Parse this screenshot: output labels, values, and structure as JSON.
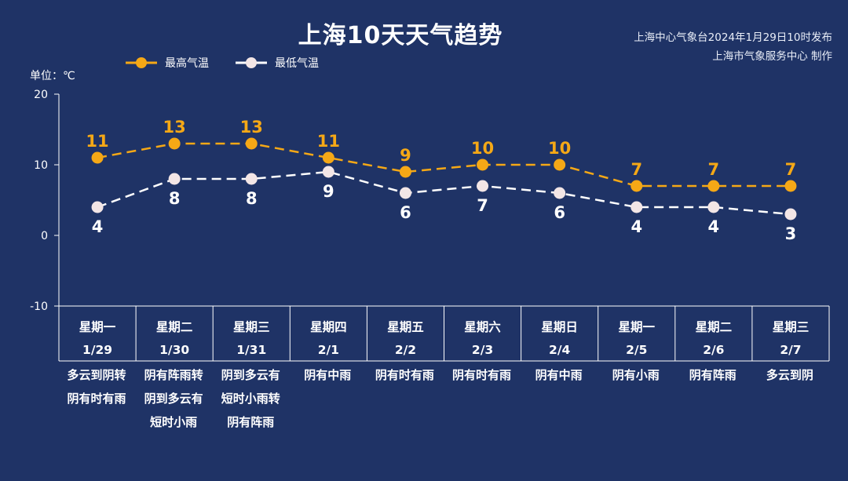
{
  "header": {
    "title": "上海10天天气趋势",
    "issuer_line1": "上海中心气象台2024年1月29日10时发布",
    "issuer_line2": "上海市气象服务中心 制作"
  },
  "unit_label": "单位：℃",
  "legend": {
    "high": "最高气温",
    "low": "最低气温"
  },
  "colors": {
    "background": "#1f3366",
    "high": "#f5a816",
    "low": "#ffffff",
    "axis": "#ffffff"
  },
  "chart_data": {
    "type": "line",
    "title": "上海10天天气趋势",
    "ylabel": "单位：℃",
    "ylim": [
      -10,
      20
    ],
    "yticks": [
      20,
      10,
      0,
      -10
    ],
    "grid": false,
    "legend_position": "top-left",
    "x": [
      {
        "weekday": "星期一",
        "date": "1/29",
        "weather": [
          "多云到阴转",
          "阴有时有雨"
        ]
      },
      {
        "weekday": "星期二",
        "date": "1/30",
        "weather": [
          "阴有阵雨转",
          "阴到多云有",
          "短时小雨"
        ]
      },
      {
        "weekday": "星期三",
        "date": "1/31",
        "weather": [
          "阴到多云有",
          "短时小雨转",
          "阴有阵雨"
        ]
      },
      {
        "weekday": "星期四",
        "date": "2/1",
        "weather": [
          "阴有中雨"
        ]
      },
      {
        "weekday": "星期五",
        "date": "2/2",
        "weather": [
          "阴有时有雨"
        ]
      },
      {
        "weekday": "星期六",
        "date": "2/3",
        "weather": [
          "阴有时有雨"
        ]
      },
      {
        "weekday": "星期日",
        "date": "2/4",
        "weather": [
          "阴有中雨"
        ]
      },
      {
        "weekday": "星期一",
        "date": "2/5",
        "weather": [
          "阴有小雨"
        ]
      },
      {
        "weekday": "星期二",
        "date": "2/6",
        "weather": [
          "阴有阵雨"
        ]
      },
      {
        "weekday": "星期三",
        "date": "2/7",
        "weather": [
          "多云到阴"
        ]
      }
    ],
    "series": [
      {
        "name": "最高气温",
        "values": [
          11,
          13,
          13,
          11,
          9,
          10,
          10,
          7,
          7,
          7
        ]
      },
      {
        "name": "最低气温",
        "values": [
          4,
          8,
          8,
          9,
          6,
          7,
          6,
          4,
          4,
          3
        ]
      }
    ]
  }
}
